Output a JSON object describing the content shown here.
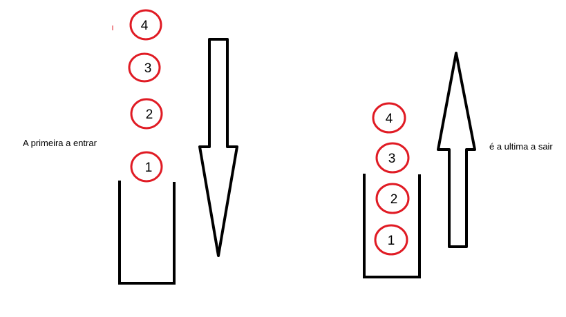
{
  "left_panel": {
    "caption": "A primeira a entrar",
    "items": [
      "4",
      "3",
      "2",
      "1"
    ]
  },
  "right_panel": {
    "caption": "é a ultima a sair",
    "items": [
      "4",
      "3",
      "2",
      "1"
    ]
  },
  "colors": {
    "circle_stroke": "#e01b24",
    "line": "#000000",
    "background": "#ffffff"
  },
  "icons": {
    "down_arrow": "arrow-down-icon",
    "up_arrow": "arrow-up-icon"
  }
}
